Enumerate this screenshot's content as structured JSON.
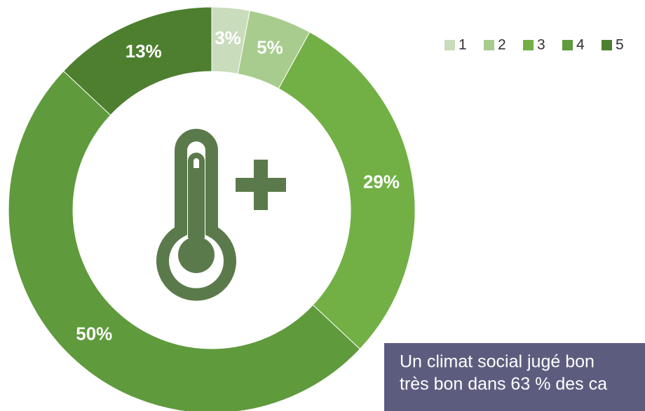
{
  "chart_data": {
    "type": "donut",
    "categories": [
      "1",
      "2",
      "3",
      "4",
      "5"
    ],
    "values": [
      3,
      5,
      29,
      50,
      13
    ],
    "value_labels": [
      "3%",
      "5%",
      "29%",
      "50%",
      "13%"
    ],
    "colors": [
      "#c9dcbc",
      "#a8cc8e",
      "#72b046",
      "#5f9a3c",
      "#4d7f2f"
    ],
    "legend": "top-right",
    "annotation": [
      "Un climat social jugé bon",
      "très bon dans 63 % des ca"
    ]
  }
}
